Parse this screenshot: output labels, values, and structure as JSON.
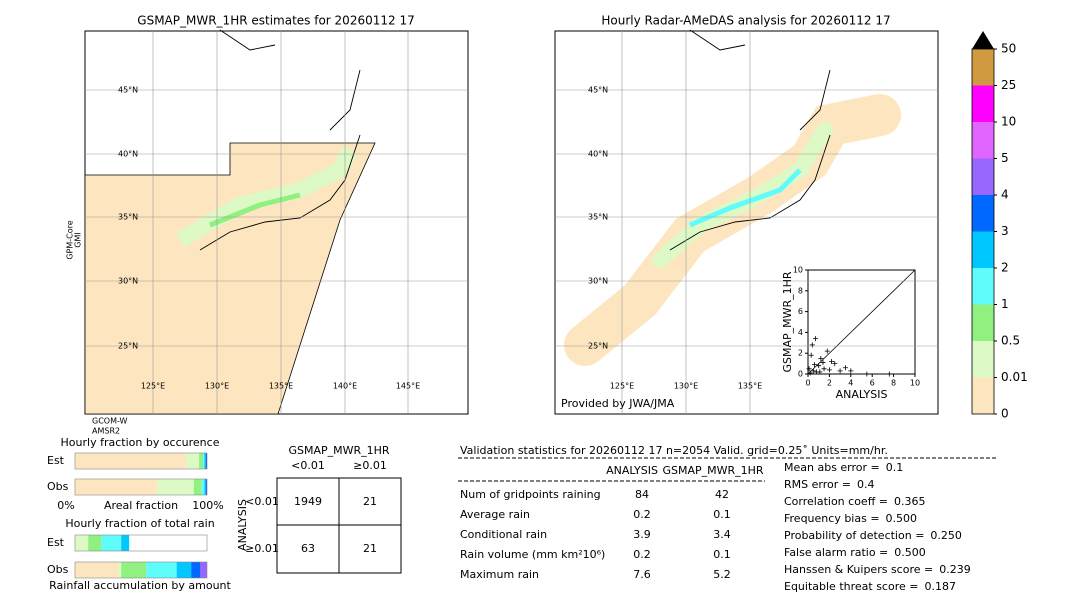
{
  "left_map": {
    "title": "GSMAP_MWR_1HR estimates for 20260112 17",
    "lat_labels": [
      "45°N",
      "40°N",
      "35°N",
      "30°N",
      "25°N"
    ],
    "lon_labels": [
      "125°E",
      "130°E",
      "135°E",
      "140°E",
      "145°E"
    ],
    "satellite": [
      "GPM-Core",
      "GMI"
    ],
    "footer": [
      "GCOM-W",
      "AMSR2"
    ]
  },
  "right_map": {
    "title": "Hourly Radar-AMeDAS analysis for 20260112 17",
    "lat_labels": [
      "45°N",
      "40°N",
      "35°N",
      "30°N",
      "25°N"
    ],
    "lon_labels": [
      "125°E",
      "130°E",
      "135°E"
    ],
    "credit": "Provided by JWA/JMA"
  },
  "scatter": {
    "type": "scatter",
    "xlabel": "ANALYSIS",
    "ylabel": "GSMAP_MWR_1HR",
    "xlim": [
      0,
      10
    ],
    "ylim": [
      0,
      10
    ],
    "xticks": [
      0,
      2,
      4,
      6,
      8,
      10
    ],
    "yticks": [
      0,
      2,
      4,
      6,
      8,
      10
    ],
    "color": "#000000",
    "x": [
      0.2,
      0.5,
      0.8,
      1.0,
      1.2,
      1.5,
      0.3,
      2.0,
      2.5,
      3.0,
      1.8,
      0.6,
      0.1,
      4.0,
      5.5,
      7.6,
      0.4,
      1.1,
      2.2,
      3.5,
      0.7,
      1.4
    ],
    "y": [
      0.1,
      0.3,
      0.2,
      0.8,
      1.5,
      0.5,
      1.8,
      0.4,
      1.0,
      0.3,
      2.2,
      0.9,
      0.5,
      0.3,
      0.0,
      0.0,
      2.8,
      0.2,
      1.2,
      0.6,
      3.4,
      1.1
    ]
  },
  "colorbar": {
    "levels": [
      0,
      0.01,
      0.5,
      1,
      2,
      3,
      4,
      5,
      10,
      25,
      50
    ],
    "colors": [
      "#fde6bf",
      "#dcf9c6",
      "#90f080",
      "#60fcfc",
      "#00c8ff",
      "#0068ff",
      "#9966ff",
      "#e066ff",
      "#ff00ff",
      "#d09a40"
    ],
    "extend_color": "#000000"
  },
  "occurrence": {
    "title": "Hourly fraction by occurence",
    "rows": [
      "Est",
      "Obs"
    ],
    "axis_labels": [
      "0%",
      "Areal fraction",
      "100%"
    ],
    "colors": [
      "#fde6bf",
      "#dcf9c6",
      "#90f080",
      "#60fcfc",
      "#00c8ff",
      "#0068ff"
    ],
    "segments": [
      [
        0.84,
        0.1,
        0.03,
        0.01,
        0.01,
        0.01
      ],
      [
        0.62,
        0.28,
        0.06,
        0.02,
        0.01,
        0.01
      ]
    ]
  },
  "total_rain": {
    "title": "Hourly fraction of total rain",
    "rows": [
      "Est",
      "Obs"
    ],
    "footer": "Rainfall accumulation by amount",
    "colors": [
      "#fde6bf",
      "#dcf9c6",
      "#90f080",
      "#60fcfc",
      "#00c8ff",
      "#0068ff",
      "#9966ff"
    ],
    "segments": [
      [
        0.0,
        0.1,
        0.1,
        0.15,
        0.06,
        0.0,
        0.0
      ],
      [
        0.33,
        0.02,
        0.19,
        0.23,
        0.11,
        0.07,
        0.05
      ]
    ]
  },
  "contingency": {
    "title": "GSMAP_MWR_1HR",
    "columns": [
      "<0.01",
      "≥0.01"
    ],
    "row_title": "ANALYSIS",
    "rows": [
      "<0.01",
      "≥0.01"
    ],
    "cells": [
      [
        "1949",
        "21"
      ],
      [
        "63",
        "21"
      ]
    ]
  },
  "stats": {
    "header": "Validation statistics for 20260112 17  n=2054 Valid. grid=0.25˚ Units=mm/hr.",
    "columns": [
      "ANALYSIS",
      "GSMAP_MWR_1HR"
    ],
    "rows": [
      {
        "label": "Num of gridpoints raining",
        "values": [
          "84",
          "42"
        ]
      },
      {
        "label": "Average rain",
        "values": [
          "0.2",
          "0.1"
        ]
      },
      {
        "label": "Conditional rain",
        "values": [
          "3.9",
          "3.4"
        ]
      },
      {
        "label": "Rain volume (mm km²10⁶)",
        "values": [
          "0.2",
          "0.1"
        ]
      },
      {
        "label": "Maximum rain",
        "values": [
          "7.6",
          "5.2"
        ]
      }
    ],
    "scores": [
      {
        "label": "Mean abs error =",
        "value": "0.1"
      },
      {
        "label": "RMS error =",
        "value": "0.4"
      },
      {
        "label": "Correlation coeff =",
        "value": "0.365"
      },
      {
        "label": "Frequency bias =",
        "value": "0.500"
      },
      {
        "label": "Probability of detection =",
        "value": "0.250"
      },
      {
        "label": "False alarm ratio =",
        "value": "0.500"
      },
      {
        "label": "Hanssen & Kuipers score =",
        "value": "0.239"
      },
      {
        "label": "Equitable threat score =",
        "value": "0.187"
      }
    ]
  }
}
